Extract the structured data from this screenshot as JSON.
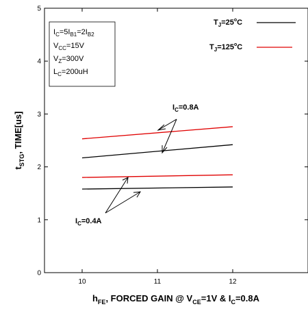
{
  "chart_data": {
    "type": "line",
    "x_ticks": [
      10,
      11,
      12
    ],
    "y_ticks": [
      0,
      1,
      2,
      3,
      4,
      5
    ],
    "xlim": [
      9.5,
      13.0
    ],
    "ylim": [
      0,
      5
    ],
    "grid": false,
    "legend_position": "top-right",
    "xlabel_parts": {
      "p1": "h",
      "s1": "FE",
      "p2": ", FORCED GAIN @ V",
      "s2": "CE",
      "p3": "=1V & I",
      "s3": "C",
      "p4": "=0.8A"
    },
    "ylabel_parts": {
      "p1": "t",
      "s1": "STG",
      "p2": ", TIME[us]"
    },
    "conditions": [
      {
        "base": "I",
        "sub": "C",
        "text": "=5I",
        "sub2": "B1",
        "text2": "=2I",
        "sub3": "B2"
      },
      {
        "base": "V",
        "sub": "CC",
        "text": "=15V"
      },
      {
        "base": "V",
        "sub": "Z",
        "text": "=300V"
      },
      {
        "base": "L",
        "sub": "C",
        "text": "=200uH"
      }
    ],
    "legend": [
      {
        "base": "T",
        "sub": "J",
        "value": "=25",
        "deg": "o",
        "unit": "C",
        "color": "#000000"
      },
      {
        "base": "T",
        "sub": "J",
        "value": "=125",
        "deg": "o",
        "unit": "C",
        "color": "#e00000"
      }
    ],
    "annotations": [
      {
        "base": "I",
        "sub": "C",
        "text": "=0.8A"
      },
      {
        "base": "I",
        "sub": "C",
        "text": "=0.4A"
      }
    ],
    "series": [
      {
        "x": [
          10,
          12
        ],
        "values": [
          2.17,
          2.42
        ],
        "color": "#000000"
      },
      {
        "x": [
          10,
          12
        ],
        "values": [
          2.53,
          2.76
        ],
        "color": "#e00000"
      },
      {
        "x": [
          10,
          12
        ],
        "values": [
          1.58,
          1.62
        ],
        "color": "#000000"
      },
      {
        "x": [
          10,
          12
        ],
        "values": [
          1.8,
          1.85
        ],
        "color": "#e00000"
      }
    ]
  }
}
